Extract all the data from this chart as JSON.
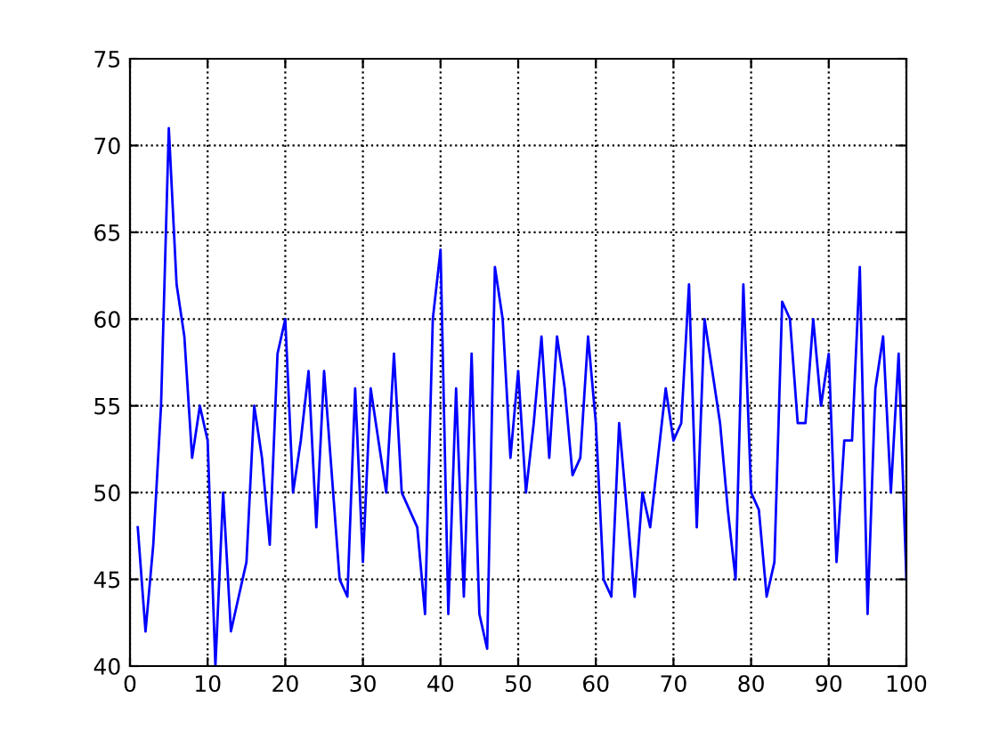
{
  "chart_data": {
    "type": "line",
    "x": [
      1,
      2,
      3,
      4,
      5,
      6,
      7,
      8,
      9,
      10,
      11,
      12,
      13,
      14,
      15,
      16,
      17,
      18,
      19,
      20,
      21,
      22,
      23,
      24,
      25,
      26,
      27,
      28,
      29,
      30,
      31,
      32,
      33,
      34,
      35,
      36,
      37,
      38,
      39,
      40,
      41,
      42,
      43,
      44,
      45,
      46,
      47,
      48,
      49,
      50,
      51,
      52,
      53,
      54,
      55,
      56,
      57,
      58,
      59,
      60,
      61,
      62,
      63,
      64,
      65,
      66,
      67,
      68,
      69,
      70,
      71,
      72,
      73,
      74,
      75,
      76,
      77,
      78,
      79,
      80,
      81,
      82,
      83,
      84,
      85,
      86,
      87,
      88,
      89,
      90,
      91,
      92,
      93,
      94,
      95,
      96,
      97,
      98,
      99,
      100
    ],
    "series": [
      {
        "color": "#0000ff",
        "values": [
          48,
          42,
          47,
          55,
          71,
          62,
          59,
          52,
          55,
          53,
          40,
          50,
          42,
          44,
          46,
          55,
          52,
          47,
          58,
          60,
          50,
          53,
          57,
          48,
          57,
          51,
          45,
          44,
          56,
          46,
          56,
          53,
          50,
          58,
          50,
          49,
          48,
          43,
          60,
          64,
          43,
          56,
          44,
          58,
          43,
          41,
          63,
          60,
          52,
          57,
          50,
          54,
          59,
          52,
          59,
          56,
          51,
          52,
          59,
          54,
          45,
          44,
          54,
          49,
          44,
          50,
          48,
          52,
          56,
          53,
          54,
          62,
          48,
          60,
          57,
          54,
          49,
          45,
          62,
          50,
          49,
          44,
          46,
          61,
          60,
          54,
          54,
          60,
          55,
          58,
          46,
          53,
          53,
          63,
          43,
          56,
          59,
          50,
          58,
          45
        ]
      }
    ],
    "xlim": [
      0,
      100
    ],
    "ylim": [
      40,
      75
    ],
    "xticks": [
      0,
      10,
      20,
      30,
      40,
      50,
      60,
      70,
      80,
      90,
      100
    ],
    "yticks": [
      40,
      45,
      50,
      55,
      60,
      65,
      70,
      75
    ],
    "grid": true,
    "line_style": "solid"
  }
}
